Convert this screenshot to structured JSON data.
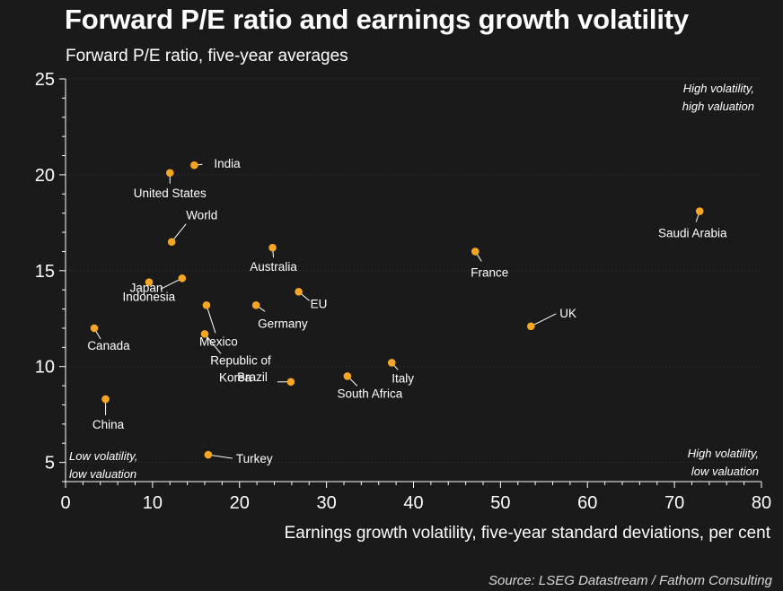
{
  "chart_data": {
    "type": "scatter",
    "title": "Forward P/E ratio and earnings growth volatility",
    "subtitle": "Forward P/E ratio, five-year averages",
    "xlabel": "Earnings growth volatility, five-year standard deviations, per cent",
    "ylabel": "",
    "source": "Source: LSEG Datastream / Fathom Consulting",
    "xlim": [
      0,
      80
    ],
    "ylim": [
      4,
      25
    ],
    "x_ticks": [
      0,
      10,
      20,
      30,
      40,
      50,
      60,
      70,
      80
    ],
    "y_ticks": [
      5,
      10,
      15,
      20,
      25
    ],
    "grid": "horizontal",
    "marker_color": "#f5a623",
    "points": [
      {
        "label": "India",
        "x": 14.8,
        "y": 20.5
      },
      {
        "label": "United States",
        "x": 12.0,
        "y": 20.1
      },
      {
        "label": "World",
        "x": 12.2,
        "y": 16.5
      },
      {
        "label": "Australia",
        "x": 23.8,
        "y": 16.2
      },
      {
        "label": "Saudi Arabia",
        "x": 72.9,
        "y": 18.1
      },
      {
        "label": "France",
        "x": 47.1,
        "y": 16.0
      },
      {
        "label": "Japan",
        "x": 9.6,
        "y": 14.4
      },
      {
        "label": "Indonesia",
        "x": 13.4,
        "y": 14.6
      },
      {
        "label": "EU",
        "x": 26.8,
        "y": 13.9
      },
      {
        "label": "Germany",
        "x": 21.9,
        "y": 13.2
      },
      {
        "label": "Mexico",
        "x": 16.2,
        "y": 13.2
      },
      {
        "label": "UK",
        "x": 53.5,
        "y": 12.1
      },
      {
        "label": "Canada",
        "x": 3.3,
        "y": 12.0
      },
      {
        "label": "Republic of Korea",
        "x": 16.0,
        "y": 11.7
      },
      {
        "label": "Brazil",
        "x": 25.9,
        "y": 9.2
      },
      {
        "label": "South Africa",
        "x": 32.4,
        "y": 9.5
      },
      {
        "label": "Italy",
        "x": 37.5,
        "y": 10.2
      },
      {
        "label": "China",
        "x": 4.6,
        "y": 8.3
      },
      {
        "label": "Turkey",
        "x": 16.4,
        "y": 5.4
      }
    ],
    "annotations": [
      {
        "text": "High volatility,",
        "position": "top-right",
        "line": 1
      },
      {
        "text": "high valuation",
        "position": "top-right",
        "line": 2
      },
      {
        "text": "High volatility,",
        "position": "bottom-right",
        "line": 1
      },
      {
        "text": "low valuation",
        "position": "bottom-right",
        "line": 2
      },
      {
        "text": "Low volatility,",
        "position": "bottom-left",
        "line": 1
      },
      {
        "text": "low valuation",
        "position": "bottom-left",
        "line": 2
      }
    ]
  }
}
